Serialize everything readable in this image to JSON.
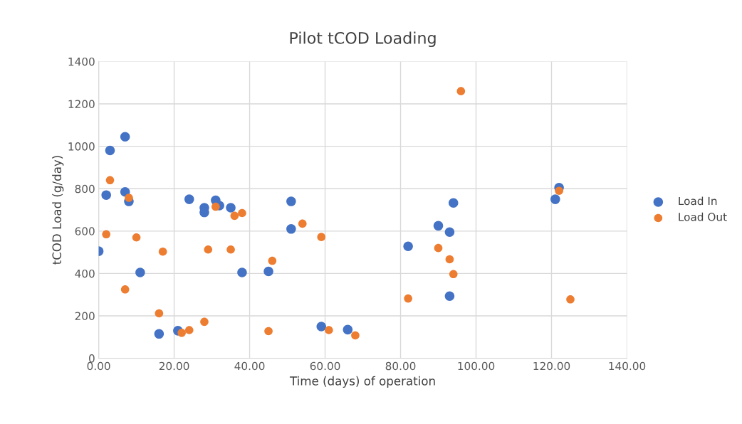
{
  "chart_data": {
    "type": "scatter",
    "title": "Pilot tCOD Loading",
    "xlabel": "Time (days) of operation",
    "ylabel": "tCOD Load (g/day)",
    "xlim": [
      0,
      140
    ],
    "xticks": [
      {
        "value": 0,
        "label": "0.00"
      },
      {
        "value": 20,
        "label": "20.00"
      },
      {
        "value": 40,
        "label": "40.00"
      },
      {
        "value": 60,
        "label": "60.00"
      },
      {
        "value": 80,
        "label": "80.00"
      },
      {
        "value": 100,
        "label": "100.00"
      },
      {
        "value": 120,
        "label": "120.00"
      },
      {
        "value": 140,
        "label": "140.00"
      }
    ],
    "ylim": [
      0,
      1400
    ],
    "yticks": [
      0,
      200,
      400,
      600,
      800,
      1000,
      1200,
      1400
    ],
    "grid": true,
    "legend": "right",
    "marker": "circle",
    "series": [
      {
        "name": "Load In",
        "color": "#4472c4",
        "x": [
          0,
          2,
          3,
          7,
          7,
          8,
          11,
          16,
          21,
          24,
          28,
          28,
          31,
          32,
          35,
          38,
          45,
          51,
          51,
          59,
          66,
          82,
          90,
          93,
          93,
          94,
          121,
          122
        ],
        "values": [
          505,
          770,
          980,
          1045,
          785,
          740,
          405,
          115,
          130,
          750,
          710,
          688,
          745,
          720,
          710,
          405,
          410,
          740,
          610,
          150,
          135,
          528,
          625,
          595,
          293,
          733,
          750,
          805
        ]
      },
      {
        "name": "Load Out",
        "color": "#ed7d31",
        "x": [
          2,
          3,
          7,
          8,
          10,
          16,
          17,
          22,
          24,
          28,
          29,
          31,
          35,
          36,
          38,
          45,
          46,
          54,
          59,
          61,
          68,
          82,
          90,
          93,
          94,
          96,
          122,
          125
        ],
        "values": [
          585,
          840,
          325,
          757,
          570,
          212,
          503,
          120,
          133,
          172,
          513,
          715,
          513,
          672,
          685,
          128,
          460,
          635,
          572,
          133,
          108,
          282,
          520,
          467,
          397,
          1260,
          790,
          278
        ]
      }
    ]
  }
}
